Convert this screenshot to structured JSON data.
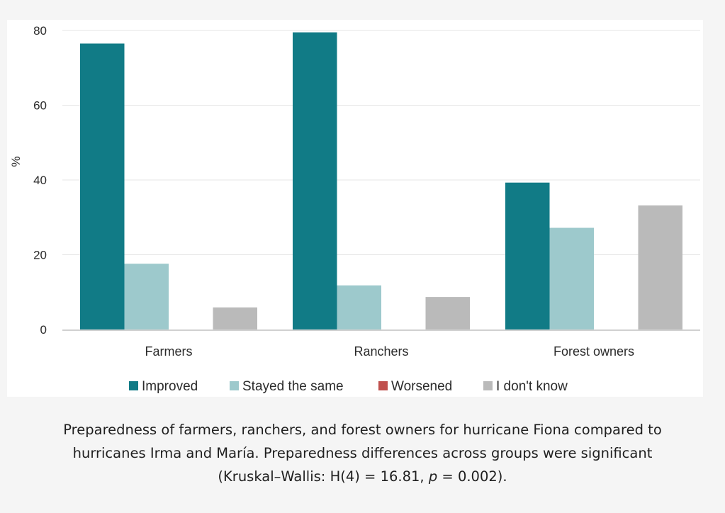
{
  "chart_data": {
    "type": "bar",
    "title": "",
    "xlabel": "",
    "ylabel": "%",
    "ylim": [
      0,
      80
    ],
    "yticks": [
      "0",
      "20",
      "40",
      "60",
      "80"
    ],
    "grid": true,
    "legend_position": "bottom",
    "categories": [
      "Farmers",
      "Ranchers",
      "Forest owners"
    ],
    "series": [
      {
        "name": "Improved",
        "color": "#117b86",
        "values": [
          76.5,
          79.5,
          39.3
        ]
      },
      {
        "name": "Stayed the same",
        "color": "#9dc9cc",
        "values": [
          17.6,
          11.8,
          27.2
        ]
      },
      {
        "name": "Worsened",
        "color": "#c0504d",
        "values": [
          0,
          0,
          0
        ]
      },
      {
        "name": "I don't know",
        "color": "#bababa",
        "values": [
          5.9,
          8.7,
          33.2
        ]
      }
    ]
  },
  "caption": {
    "line1": "Preparedness of farmers, ranchers, and forest owners for hurricane Fiona compared to",
    "line2": "hurricanes Irma and María. Preparedness differences across groups were significant",
    "line3_pre": "(Kruskal–Wallis: H(4) = 16.81, ",
    "line3_italic": "p",
    "line3_post": " = 0.002)."
  }
}
